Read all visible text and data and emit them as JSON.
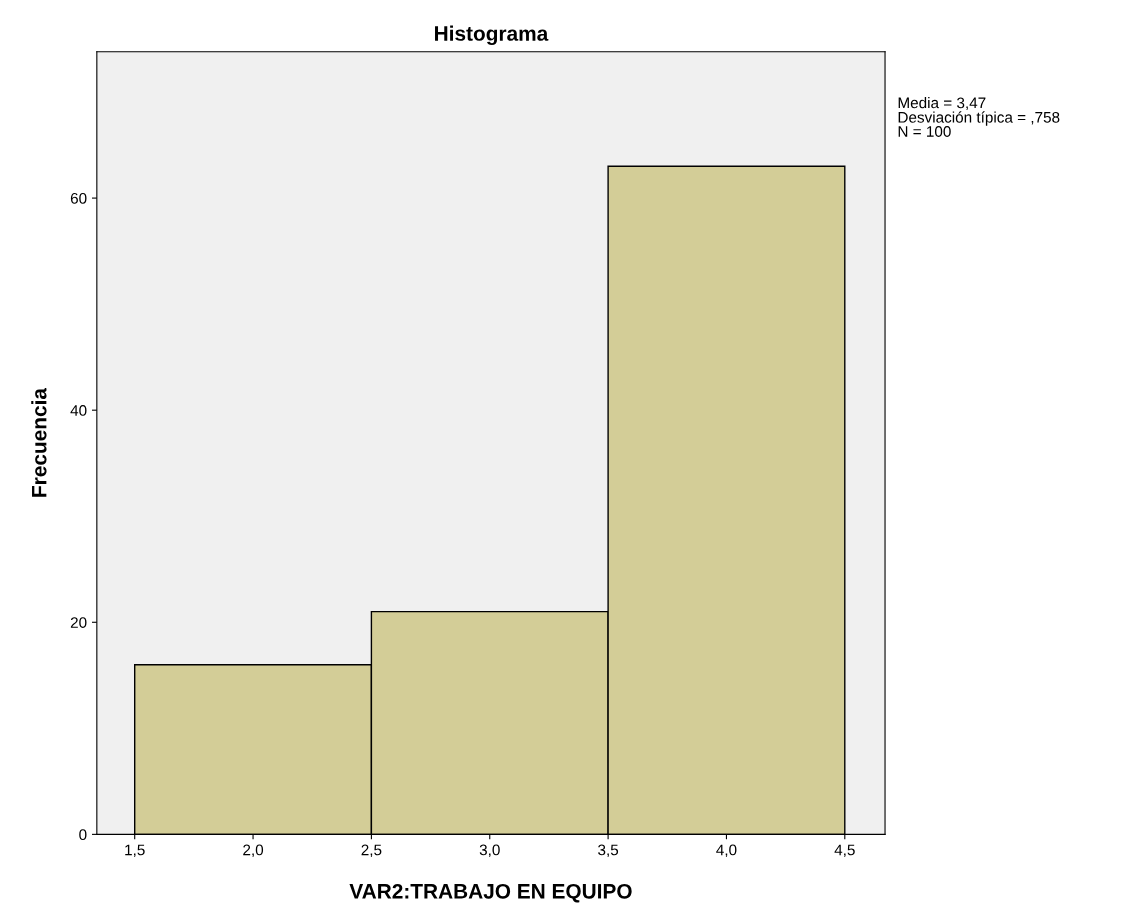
{
  "chart_data": {
    "type": "histogram",
    "title": "Histograma",
    "xlabel": "VAR2:TRABAJO EN EQUIPO",
    "ylabel": "Frecuencia",
    "bins": [
      1.5,
      2.5,
      3.5,
      4.5
    ],
    "values": [
      16,
      21,
      63
    ],
    "color": "#d3cd97",
    "xlim": [
      1.34,
      4.67
    ],
    "ylim": [
      0,
      73.8
    ],
    "xticks": [
      {
        "value": 1.5,
        "label": "1,5"
      },
      {
        "value": 2.0,
        "label": "2,0"
      },
      {
        "value": 2.5,
        "label": "2,5"
      },
      {
        "value": 3.0,
        "label": "3,0"
      },
      {
        "value": 3.5,
        "label": "3,5"
      },
      {
        "value": 4.0,
        "label": "4,0"
      },
      {
        "value": 4.5,
        "label": "4,5"
      }
    ],
    "yticks": [
      0,
      20,
      40,
      60
    ],
    "grid": false,
    "annotations": [
      "Media = 3,47",
      "Desviación típica = ,758",
      "N = 100"
    ]
  }
}
